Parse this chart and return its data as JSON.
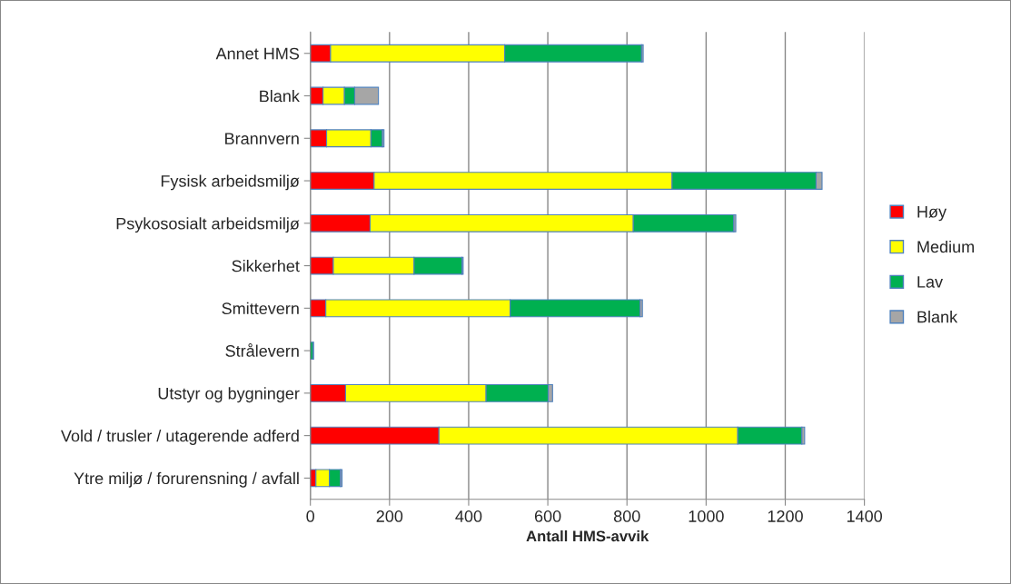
{
  "chart_data": {
    "type": "bar",
    "orientation": "horizontal",
    "stacked": true,
    "xlabel": "Antall HMS-avvik",
    "categories": [
      "Annet HMS",
      "Blank",
      "Brannvern",
      "Fysisk arbeidsmiljø",
      "Psykososialt arbeidsmiljø",
      "Sikkerhet",
      "Smittevern",
      "Strålevern",
      "Utstyr og bygninger",
      "Vold / trusler / utagerende adferd",
      "Ytre miljø / forurensning / avfall"
    ],
    "series": [
      {
        "name": "Høy",
        "color": "#ff0000",
        "values": [
          51,
          32,
          41,
          161,
          151,
          58,
          39,
          0,
          89,
          325,
          14
        ]
      },
      {
        "name": "Medium",
        "color": "#ffff00",
        "values": [
          440,
          54,
          112,
          753,
          665,
          204,
          466,
          0,
          355,
          755,
          34
        ]
      },
      {
        "name": "Lav",
        "color": "#00b050",
        "values": [
          346,
          26,
          29,
          364,
          254,
          121,
          328,
          7,
          157,
          162,
          28
        ]
      },
      {
        "name": "Blank",
        "color": "#a6a6a6",
        "values": [
          4,
          60,
          4,
          15,
          5,
          3,
          6,
          1,
          11,
          7,
          4
        ]
      }
    ],
    "xlim": [
      0,
      1400
    ],
    "xticks": [
      0,
      200,
      400,
      600,
      800,
      1000,
      1200,
      1400
    ],
    "grid": "x",
    "legend": "right"
  }
}
